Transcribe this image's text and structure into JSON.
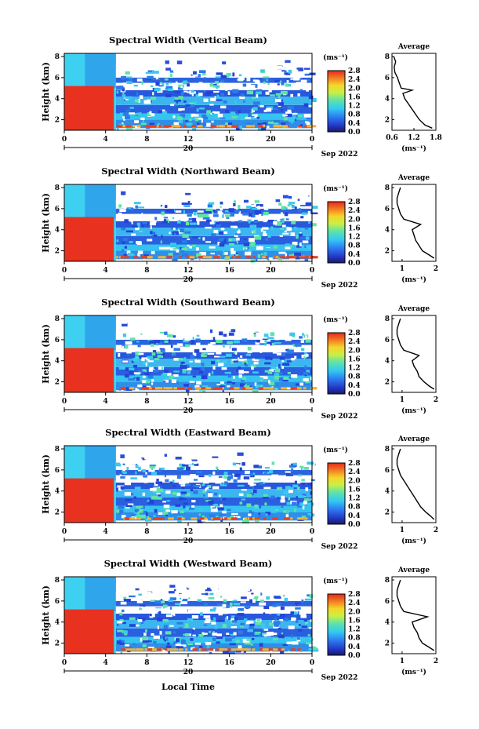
{
  "figure": {
    "xlabel": "Local Time",
    "date_label": "Sep 2022",
    "day_label": "20",
    "colorbar_unit": "(ms⁻¹)",
    "colorbar_ticks": [
      "0.0",
      "0.4",
      "0.8",
      "1.2",
      "1.6",
      "2.0",
      "2.4",
      "2.8"
    ],
    "colors": {
      "red": "#e8311f",
      "cyan": "#33d7f2",
      "blue": "#1e3fd6",
      "white": "#ffffff"
    }
  },
  "chart_data": [
    {
      "type": "heatmap",
      "title": "Spectral Width (Vertical Beam)",
      "xlabel": "",
      "ylabel": "Height (km)",
      "x_ticks": [
        "0",
        "4",
        "8",
        "12",
        "16",
        "20",
        "0"
      ],
      "y_ticks": [
        "2",
        "4",
        "6",
        "8"
      ],
      "xlim": [
        0,
        24
      ],
      "ylim": [
        1,
        8.3
      ],
      "colorbar": {
        "min": 0.0,
        "max": 2.8,
        "label": "(ms⁻¹)"
      },
      "profile": {
        "title": "Average",
        "xlabel": "(ms⁻¹)",
        "x_ticks": [
          "0.6",
          "1.2",
          "1.8"
        ],
        "xlim": [
          0.6,
          1.8
        ],
        "y_ticks": [
          "2",
          "4",
          "6",
          "8"
        ],
        "ylim": [
          1,
          8.3
        ],
        "heights": [
          1.2,
          1.5,
          2.0,
          2.5,
          3.0,
          3.5,
          4.0,
          4.5,
          4.8,
          5.0,
          5.5,
          6.0,
          6.5,
          7.0,
          7.5,
          8.0
        ],
        "values": [
          1.7,
          1.5,
          1.35,
          1.25,
          1.15,
          1.05,
          0.95,
          0.9,
          1.15,
          0.85,
          0.8,
          0.75,
          0.68,
          0.66,
          0.7,
          0.65
        ]
      }
    },
    {
      "type": "heatmap",
      "title": "Spectral Width (Northward Beam)",
      "xlabel": "",
      "ylabel": "Height (km)",
      "x_ticks": [
        "0",
        "4",
        "8",
        "12",
        "16",
        "20",
        "0"
      ],
      "y_ticks": [
        "2",
        "4",
        "6",
        "8"
      ],
      "xlim": [
        0,
        24
      ],
      "ylim": [
        1,
        8.3
      ],
      "colorbar": {
        "min": 0.0,
        "max": 2.8,
        "label": "(ms⁻¹)"
      },
      "profile": {
        "title": "Average",
        "xlabel": "(ms⁻¹)",
        "x_ticks": [
          "1",
          "2"
        ],
        "xlim": [
          0.7,
          2.0
        ],
        "y_ticks": [
          "2",
          "4",
          "6",
          "8"
        ],
        "ylim": [
          1,
          8.3
        ],
        "heights": [
          1.3,
          1.6,
          2.0,
          2.5,
          3.0,
          3.5,
          4.0,
          4.5,
          5.0,
          5.5,
          6.0,
          6.5,
          7.0,
          7.5,
          8.0
        ],
        "values": [
          1.95,
          1.8,
          1.6,
          1.5,
          1.4,
          1.35,
          1.3,
          1.55,
          1.05,
          0.95,
          0.9,
          0.85,
          0.85,
          0.9,
          0.95
        ]
      }
    },
    {
      "type": "heatmap",
      "title": "Spectral Width (Southward Beam)",
      "xlabel": "",
      "ylabel": "Height (km)",
      "x_ticks": [
        "0",
        "4",
        "8",
        "12",
        "16",
        "20",
        "0"
      ],
      "y_ticks": [
        "2",
        "4",
        "6",
        "8"
      ],
      "xlim": [
        0,
        24
      ],
      "ylim": [
        1,
        8.3
      ],
      "colorbar": {
        "min": 0.0,
        "max": 2.8,
        "label": "(ms⁻¹)"
      },
      "profile": {
        "title": "Average",
        "xlabel": "(ms⁻¹)",
        "x_ticks": [
          "1",
          "2"
        ],
        "xlim": [
          0.7,
          2.0
        ],
        "y_ticks": [
          "2",
          "4",
          "6",
          "8"
        ],
        "ylim": [
          1,
          8.3
        ],
        "heights": [
          1.3,
          1.6,
          2.0,
          2.5,
          3.0,
          3.5,
          4.0,
          4.5,
          5.0,
          5.5,
          6.0,
          6.5,
          7.0,
          7.5,
          8.0
        ],
        "values": [
          1.95,
          1.8,
          1.65,
          1.5,
          1.45,
          1.35,
          1.3,
          1.5,
          1.05,
          0.95,
          0.9,
          0.85,
          0.85,
          0.9,
          0.95
        ]
      }
    },
    {
      "type": "heatmap",
      "title": "Spectral Width (Eastward Beam)",
      "xlabel": "",
      "ylabel": "Height (km)",
      "x_ticks": [
        "0",
        "4",
        "8",
        "12",
        "16",
        "20",
        "0"
      ],
      "y_ticks": [
        "2",
        "4",
        "6",
        "8"
      ],
      "xlim": [
        0,
        24
      ],
      "ylim": [
        1,
        8.3
      ],
      "colorbar": {
        "min": 0.0,
        "max": 2.8,
        "label": "(ms⁻¹)"
      },
      "profile": {
        "title": "Average",
        "xlabel": "(ms⁻¹)",
        "x_ticks": [
          "1",
          "2"
        ],
        "xlim": [
          0.7,
          2.0
        ],
        "y_ticks": [
          "2",
          "4",
          "6",
          "8"
        ],
        "ylim": [
          1,
          8.3
        ],
        "heights": [
          1.3,
          1.6,
          2.0,
          2.5,
          3.0,
          3.5,
          4.0,
          4.5,
          5.0,
          5.5,
          6.0,
          6.5,
          7.0,
          7.5,
          8.0
        ],
        "values": [
          1.95,
          1.85,
          1.7,
          1.55,
          1.45,
          1.35,
          1.25,
          1.15,
          1.05,
          0.95,
          0.9,
          0.85,
          0.85,
          0.9,
          0.95
        ]
      }
    },
    {
      "type": "heatmap",
      "title": "Spectral Width (Westward Beam)",
      "xlabel": "Local Time",
      "ylabel": "Height (km)",
      "x_ticks": [
        "0",
        "4",
        "8",
        "12",
        "16",
        "20",
        "0"
      ],
      "y_ticks": [
        "2",
        "4",
        "6",
        "8"
      ],
      "xlim": [
        0,
        24
      ],
      "ylim": [
        1,
        8.3
      ],
      "colorbar": {
        "min": 0.0,
        "max": 2.8,
        "label": "(ms⁻¹)"
      },
      "profile": {
        "title": "Average",
        "xlabel": "(ms⁻¹)",
        "x_ticks": [
          "1",
          "2"
        ],
        "xlim": [
          0.7,
          2.0
        ],
        "y_ticks": [
          "2",
          "4",
          "6",
          "8"
        ],
        "ylim": [
          1,
          8.3
        ],
        "heights": [
          1.3,
          1.6,
          2.0,
          2.5,
          3.0,
          3.5,
          4.0,
          4.5,
          5.0,
          5.5,
          6.0,
          6.5,
          7.0,
          7.5,
          8.0
        ],
        "values": [
          1.95,
          1.8,
          1.6,
          1.5,
          1.45,
          1.35,
          1.3,
          1.75,
          1.05,
          0.95,
          0.9,
          0.85,
          0.85,
          0.9,
          0.95
        ]
      }
    }
  ]
}
